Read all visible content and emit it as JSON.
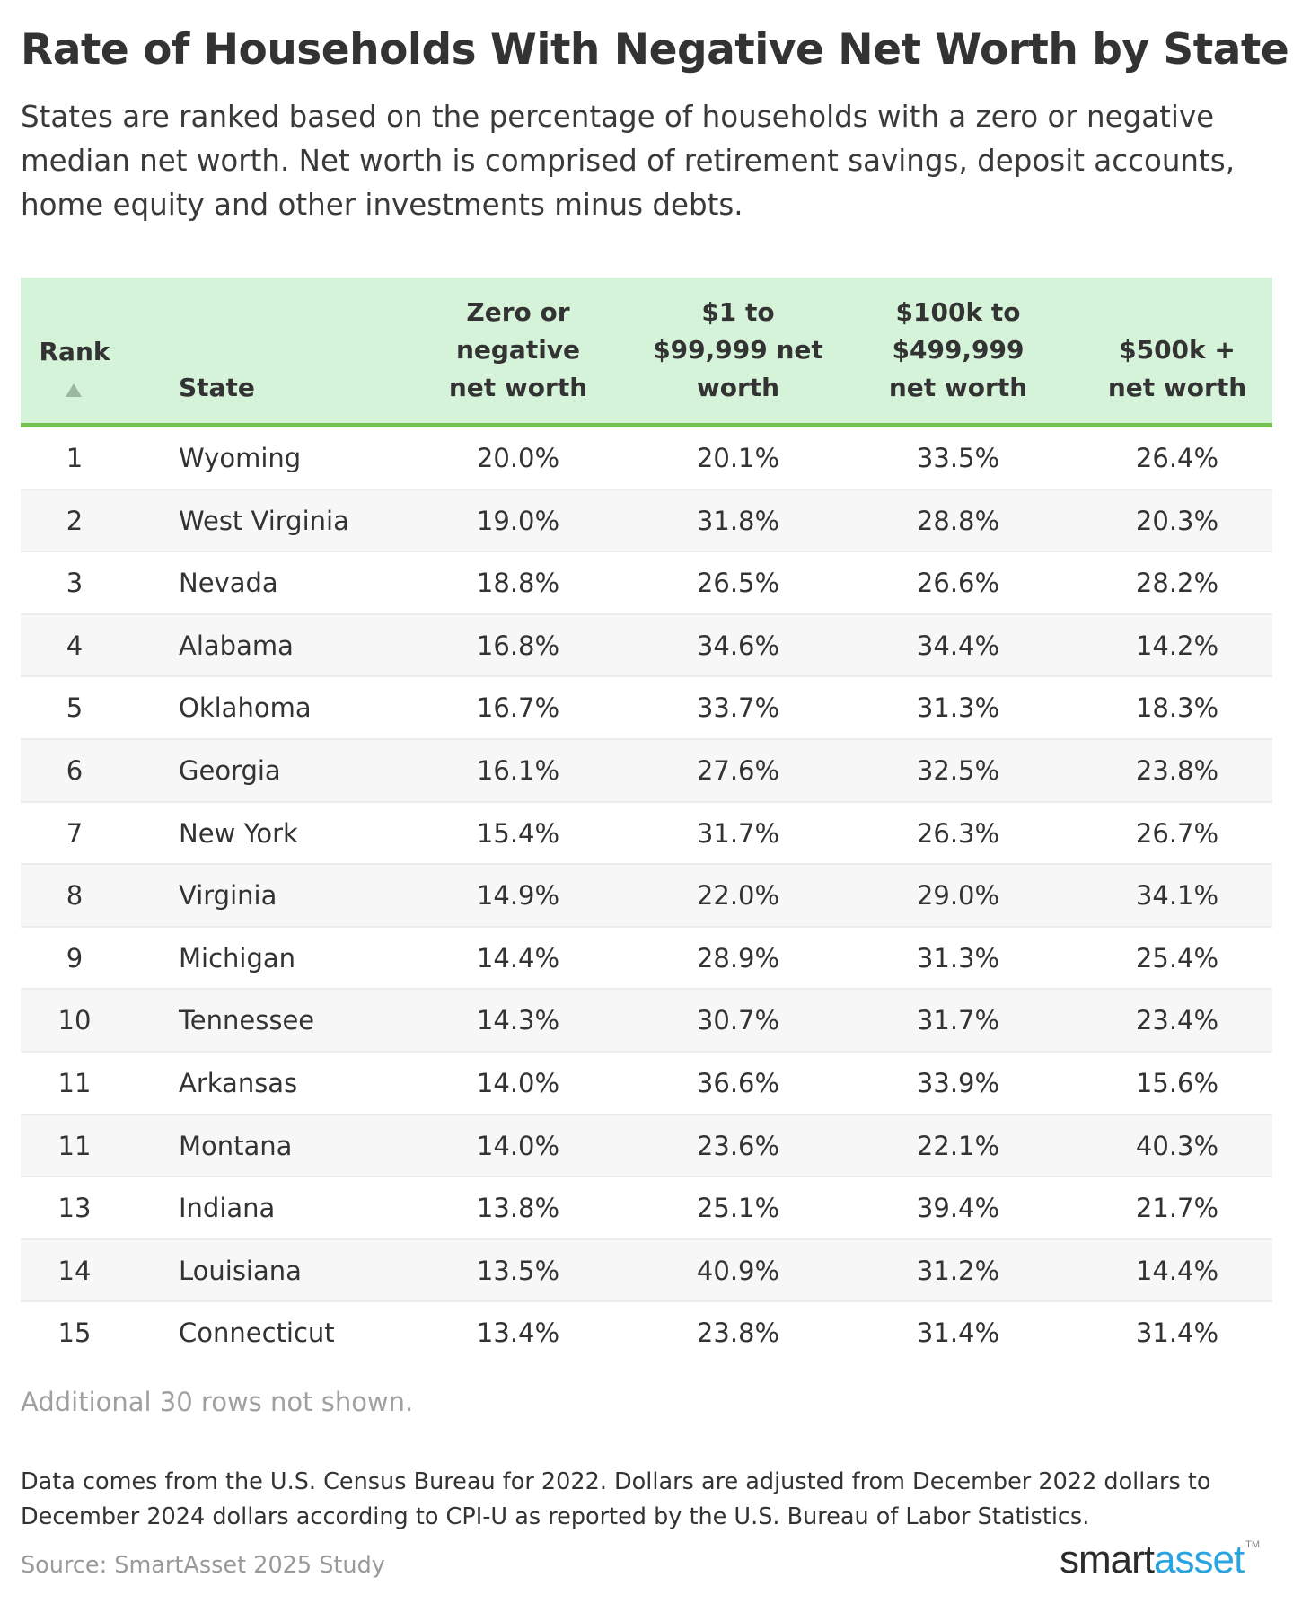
{
  "header": {
    "title": "Rate of Households With Negative Net Worth by State",
    "subtitle": "States are ranked based on the percentage of households with a zero or negative median net worth. Net worth is comprised of retirement savings, deposit accounts, home equity and other investments minus debts."
  },
  "colors": {
    "header_bg": "#d5f3d8",
    "header_rule": "#74c150",
    "logo_accent": "#2aa4e0"
  },
  "chart_data": {
    "type": "table",
    "title": "Rate of Households With Negative Net Worth by State",
    "columns": [
      {
        "line1": "Rank",
        "line2": "",
        "line3": "",
        "sort_icon": "sort-ascending-icon"
      },
      {
        "line1": "",
        "line2": "",
        "line3": "State"
      },
      {
        "line1": "Zero or",
        "line2": "negative",
        "line3": "net worth"
      },
      {
        "line1": "$1 to",
        "line2": "$99,999 net",
        "line3": "worth"
      },
      {
        "line1": "$100k to",
        "line2": "$499,999",
        "line3": "net worth"
      },
      {
        "line1": "",
        "line2": "$500k +",
        "line3": "net worth"
      }
    ],
    "rows": [
      {
        "rank": "1",
        "state": "Wyoming",
        "zero_or_negative": "20.0%",
        "to_99999": "20.1%",
        "to_499999": "33.5%",
        "over_500k": "26.4%"
      },
      {
        "rank": "2",
        "state": "West Virginia",
        "zero_or_negative": "19.0%",
        "to_99999": "31.8%",
        "to_499999": "28.8%",
        "over_500k": "20.3%"
      },
      {
        "rank": "3",
        "state": "Nevada",
        "zero_or_negative": "18.8%",
        "to_99999": "26.5%",
        "to_499999": "26.6%",
        "over_500k": "28.2%"
      },
      {
        "rank": "4",
        "state": "Alabama",
        "zero_or_negative": "16.8%",
        "to_99999": "34.6%",
        "to_499999": "34.4%",
        "over_500k": "14.2%"
      },
      {
        "rank": "5",
        "state": "Oklahoma",
        "zero_or_negative": "16.7%",
        "to_99999": "33.7%",
        "to_499999": "31.3%",
        "over_500k": "18.3%"
      },
      {
        "rank": "6",
        "state": "Georgia",
        "zero_or_negative": "16.1%",
        "to_99999": "27.6%",
        "to_499999": "32.5%",
        "over_500k": "23.8%"
      },
      {
        "rank": "7",
        "state": "New York",
        "zero_or_negative": "15.4%",
        "to_99999": "31.7%",
        "to_499999": "26.3%",
        "over_500k": "26.7%"
      },
      {
        "rank": "8",
        "state": "Virginia",
        "zero_or_negative": "14.9%",
        "to_99999": "22.0%",
        "to_499999": "29.0%",
        "over_500k": "34.1%"
      },
      {
        "rank": "9",
        "state": "Michigan",
        "zero_or_negative": "14.4%",
        "to_99999": "28.9%",
        "to_499999": "31.3%",
        "over_500k": "25.4%"
      },
      {
        "rank": "10",
        "state": "Tennessee",
        "zero_or_negative": "14.3%",
        "to_99999": "30.7%",
        "to_499999": "31.7%",
        "over_500k": "23.4%"
      },
      {
        "rank": "11",
        "state": "Arkansas",
        "zero_or_negative": "14.0%",
        "to_99999": "36.6%",
        "to_499999": "33.9%",
        "over_500k": "15.6%"
      },
      {
        "rank": "11",
        "state": "Montana",
        "zero_or_negative": "14.0%",
        "to_99999": "23.6%",
        "to_499999": "22.1%",
        "over_500k": "40.3%"
      },
      {
        "rank": "13",
        "state": "Indiana",
        "zero_or_negative": "13.8%",
        "to_99999": "25.1%",
        "to_499999": "39.4%",
        "over_500k": "21.7%"
      },
      {
        "rank": "14",
        "state": "Louisiana",
        "zero_or_negative": "13.5%",
        "to_99999": "40.9%",
        "to_499999": "31.2%",
        "over_500k": "14.4%"
      },
      {
        "rank": "15",
        "state": "Connecticut",
        "zero_or_negative": "13.4%",
        "to_99999": "23.8%",
        "to_499999": "31.4%",
        "over_500k": "31.4%"
      }
    ]
  },
  "footer": {
    "more_rows_note": "Additional 30 rows not shown.",
    "methodology": "Data comes from the U.S. Census Bureau for 2022. Dollars are adjusted from December 2022 dollars to December 2024 dollars according to CPI-U as reported by the U.S. Bureau of Labor Statistics.",
    "source": "Source: SmartAsset 2025 Study",
    "logo_part1": "smart",
    "logo_part2": "asset",
    "logo_tm": "TM"
  }
}
